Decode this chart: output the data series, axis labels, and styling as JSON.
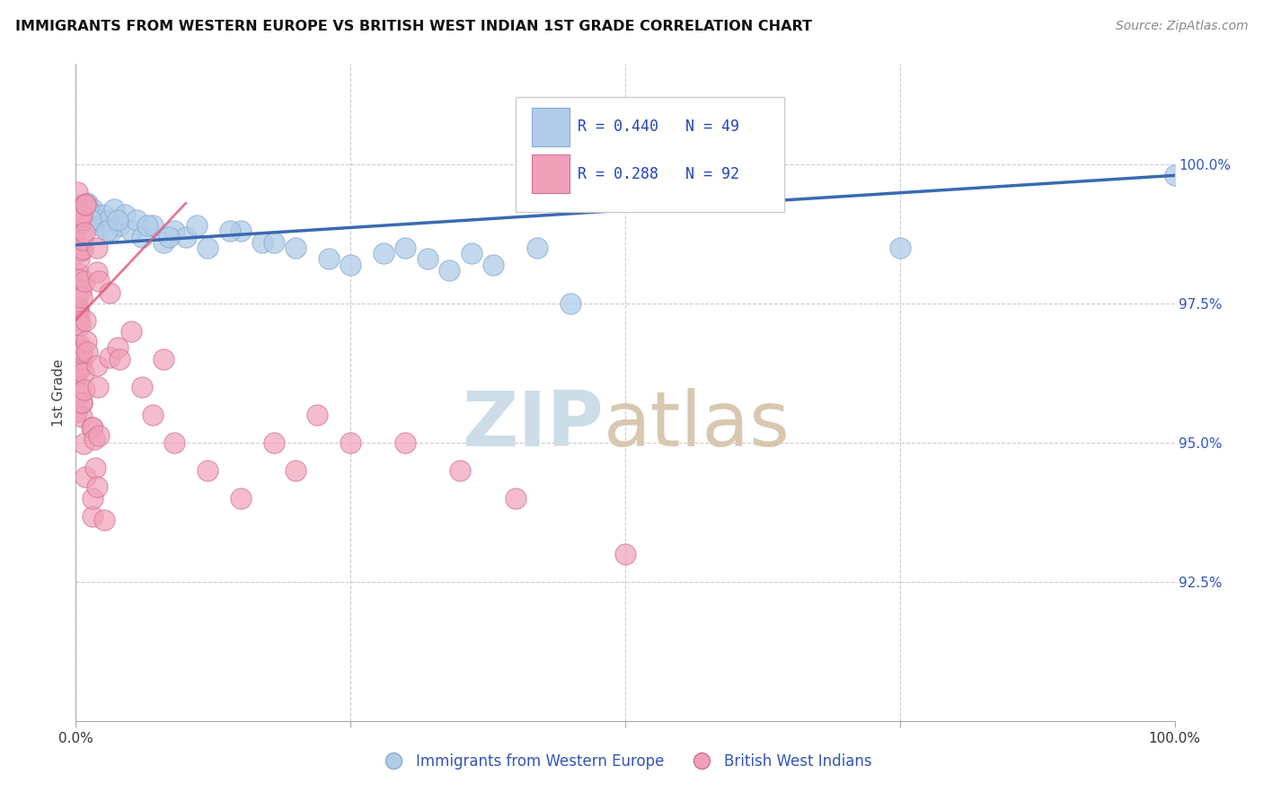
{
  "title": "IMMIGRANTS FROM WESTERN EUROPE VS BRITISH WEST INDIAN 1ST GRADE CORRELATION CHART",
  "source": "Source: ZipAtlas.com",
  "ylabel": "1st Grade",
  "yticks": [
    92.5,
    95.0,
    97.5,
    100.0
  ],
  "ytick_labels": [
    "92.5%",
    "95.0%",
    "97.5%",
    "100.0%"
  ],
  "xlim": [
    0,
    100
  ],
  "ylim": [
    90.0,
    101.8
  ],
  "legend_entries": [
    {
      "color": "#aac4e0",
      "R": 0.44,
      "N": 49
    },
    {
      "color": "#f4a0b5",
      "R": 0.288,
      "N": 92
    }
  ],
  "legend_labels": [
    "Immigrants from Western Europe",
    "British West Indians"
  ],
  "blue_color": "#b0cce8",
  "pink_color": "#f0a0b8",
  "blue_edge_color": "#88aad0",
  "pink_edge_color": "#d07090",
  "blue_line_color": "#3a6ab0",
  "pink_line_color": "#e05878",
  "grid_color": "#cccccc",
  "watermark_zip_color": "#ccdde8",
  "watermark_atlas_color": "#d8c8b0",
  "background_color": "#ffffff",
  "blue_line_start_y": 98.55,
  "blue_line_end_y": 99.8,
  "pink_line_start_y": 97.2,
  "pink_line_end_x": 10,
  "pink_line_end_y": 99.3
}
